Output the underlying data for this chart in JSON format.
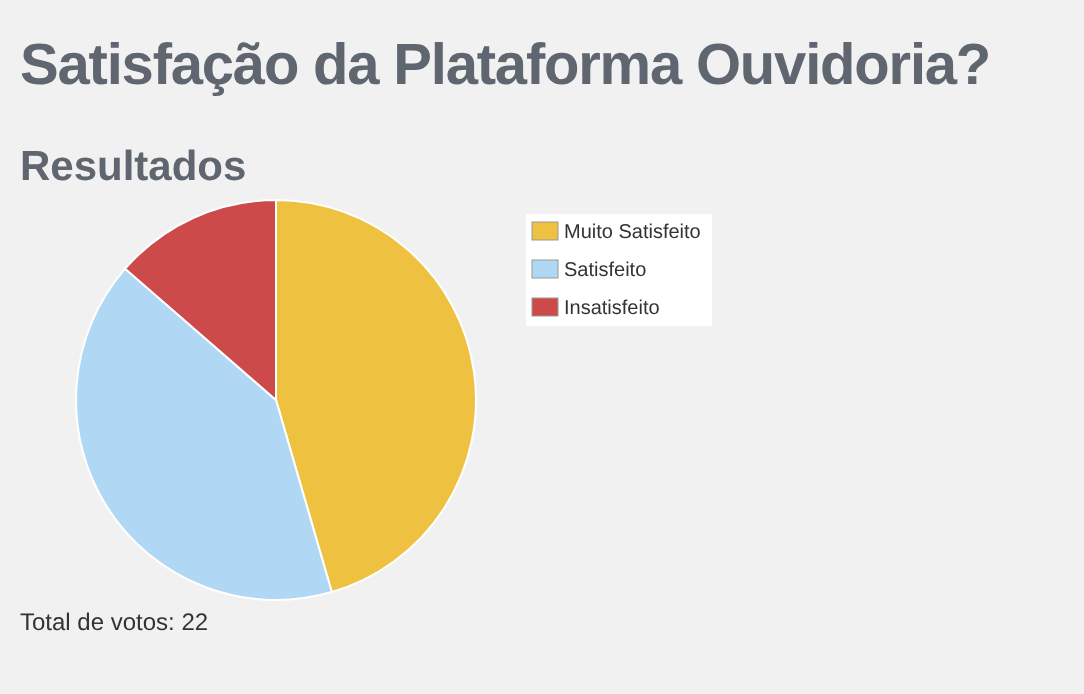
{
  "chart_data": {
    "type": "pie",
    "title": "Satisfação da Plataforma Ouvidoria?",
    "subtitle": "Resultados",
    "categories": [
      "Muito Satisfeito",
      "Satisfeito",
      "Insatisfeito"
    ],
    "values": [
      45.5,
      40.9,
      13.6
    ],
    "colors": [
      "#eec140",
      "#b0d8f5",
      "#cc4a4a"
    ],
    "legend": "right",
    "annotations": [
      "Total de votos: 22"
    ]
  }
}
